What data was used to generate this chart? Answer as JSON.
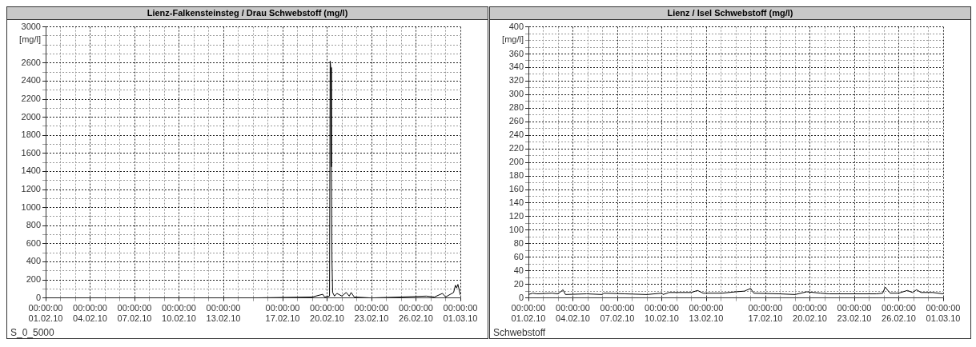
{
  "chart_data": [
    {
      "type": "line",
      "title": "Lienz-Falkensteinsteg / Drau Schwebstoff (mg/l)",
      "ylabel": "[mg/l]",
      "color": "#000000",
      "grid": true,
      "x": [
        "--02-01T00:00",
        "--02-05T00:00",
        "--02-10T00:00",
        "--02-15T00:00",
        "--02-19T00:00",
        "--02-19T17:00",
        "--02-19T20:00",
        "--02-20T04:00",
        "--02-20T05:00",
        "--02-20T06:00",
        "--02-20T07:00",
        "--02-20T08:00",
        "--02-20T09:00",
        "--02-20T12:00",
        "--02-20T16:00",
        "--02-21T00:00",
        "--02-21T07:00",
        "--02-21T12:00",
        "--02-21T15:00",
        "--02-21T20:00",
        "--02-23T00:00",
        "--02-25T00:00",
        "--02-26T17:00",
        "--02-27T06:00",
        "--02-27T19:00",
        "--02-28T00:00",
        "--02-28T13:00",
        "--02-28T16:00",
        "--02-28T18:00",
        "--02-28T20:00",
        "--03-01T00:00"
      ],
      "values": [
        0,
        0,
        0,
        0,
        10,
        40,
        10,
        20,
        2620,
        2550,
        1450,
        400,
        60,
        20,
        50,
        20,
        60,
        20,
        60,
        10,
        0,
        10,
        20,
        10,
        50,
        10,
        60,
        140,
        110,
        150,
        30
      ],
      "xlim": [
        "--02-01",
        "--03-01"
      ],
      "xticks": [
        {
          "value": "--02-01",
          "label": "00:00:00\n01.02.10"
        },
        {
          "value": "--02-02",
          "label": null
        },
        {
          "value": "--02-03",
          "label": null
        },
        {
          "value": "--02-04",
          "label": "00:00:00\n04.02.10"
        },
        {
          "value": "--02-05",
          "label": null
        },
        {
          "value": "--02-06",
          "label": null
        },
        {
          "value": "--02-07",
          "label": "00:00:00\n07.02.10"
        },
        {
          "value": "--02-08",
          "label": null
        },
        {
          "value": "--02-09",
          "label": null
        },
        {
          "value": "--02-10",
          "label": "00:00:00\n10.02.10"
        },
        {
          "value": "--02-11",
          "label": null
        },
        {
          "value": "--02-12",
          "label": null
        },
        {
          "value": "--02-13",
          "label": "00:00:00\n13.02.10"
        },
        {
          "value": "--02-14",
          "label": null
        },
        {
          "value": "--02-15",
          "label": null
        },
        {
          "value": "--02-16",
          "label": null
        },
        {
          "value": "--02-17",
          "label": "00:00:00\n17.02.10"
        },
        {
          "value": "--02-18",
          "label": null
        },
        {
          "value": "--02-19",
          "label": null
        },
        {
          "value": "--02-20",
          "label": "00:00:00\n20.02.10"
        },
        {
          "value": "--02-21",
          "label": null
        },
        {
          "value": "--02-22",
          "label": null
        },
        {
          "value": "--02-23",
          "label": "00:00:00\n23.02.10"
        },
        {
          "value": "--02-24",
          "label": null
        },
        {
          "value": "--02-25",
          "label": null
        },
        {
          "value": "--02-26",
          "label": "00:00:00\n26.02.10"
        },
        {
          "value": "--02-27",
          "label": null
        },
        {
          "value": "--02-28",
          "label": null
        },
        {
          "value": "--03-01",
          "label": "00:00:00\n01.03.10"
        }
      ],
      "ylim": [
        0,
        3000
      ],
      "yticks": [
        0,
        {
          "value": 100,
          "label": null
        },
        200,
        {
          "value": 300,
          "label": null
        },
        400,
        {
          "value": 500,
          "label": null
        },
        600,
        {
          "value": 700,
          "label": null
        },
        800,
        {
          "value": 900,
          "label": null
        },
        1000,
        {
          "value": 1100,
          "label": null
        },
        1200,
        {
          "value": 1300,
          "label": null
        },
        1400,
        {
          "value": 1500,
          "label": null
        },
        1600,
        {
          "value": 1700,
          "label": null
        },
        1800,
        {
          "value": 1900,
          "label": null
        },
        2000,
        {
          "value": 2100,
          "label": null
        },
        2200,
        {
          "value": 2300,
          "label": null
        },
        2400,
        {
          "value": 2500,
          "label": null
        },
        2600,
        {
          "value": 2700,
          "label": null
        },
        {
          "value": 2800,
          "label": null
        },
        {
          "value": 2900,
          "label": null
        },
        3000
      ],
      "annotations": [
        "S_0_5000"
      ]
    },
    {
      "type": "line",
      "title": "Lienz / Isel Schwebstoff (mg/l)",
      "ylabel": "[mg/l]",
      "color": "#000000",
      "grid": true,
      "x": [
        "--02-01T00:00",
        "--02-01T07:00",
        "--02-01T14:00",
        "--02-02T14:00",
        "--02-03T00:00",
        "--02-03T08:00",
        "--02-03T12:00",
        "--02-04T22:00",
        "--02-06T00:00",
        "--02-06T02:00",
        "--02-07T12:00",
        "--02-09T00:00",
        "--02-10T00:00",
        "--02-10T02:00",
        "--02-10T12:00",
        "--02-12T00:00",
        "--02-12T10:00",
        "--02-12T19:00",
        "--02-14T02:00",
        "--02-15T00:00",
        "--02-15T14:00",
        "--02-16T00:00",
        "--02-16T05:00",
        "--02-17T22:00",
        "--02-19T00:00",
        "--02-19T19:00",
        "--02-20T17:00",
        "--02-21T07:00",
        "--02-24T12:00",
        "--02-24T22:00",
        "--02-25T02:00",
        "--02-25T10:00",
        "--02-26T00:00",
        "--02-26T14:00",
        "--02-26T22:00",
        "--02-27T05:00",
        "--02-27T12:00",
        "--02-28T07:00",
        "--03-01T00:00"
      ],
      "values": [
        5,
        7,
        6,
        7,
        6,
        12,
        5,
        6,
        5,
        7,
        6,
        5,
        7,
        5,
        8,
        8,
        11,
        7,
        7,
        9,
        10,
        14,
        7,
        6,
        5,
        9,
        7,
        6,
        6,
        7,
        16,
        7,
        7,
        11,
        8,
        12,
        8,
        8,
        6
      ],
      "xlim": [
        "--02-01",
        "--03-01"
      ],
      "xticks": [
        {
          "value": "--02-01",
          "label": "00:00:00\n01.02.10"
        },
        {
          "value": "--02-02",
          "label": null
        },
        {
          "value": "--02-03",
          "label": null
        },
        {
          "value": "--02-04",
          "label": "00:00:00\n04.02.10"
        },
        {
          "value": "--02-05",
          "label": null
        },
        {
          "value": "--02-06",
          "label": null
        },
        {
          "value": "--02-07",
          "label": "00:00:00\n07.02.10"
        },
        {
          "value": "--02-08",
          "label": null
        },
        {
          "value": "--02-09",
          "label": null
        },
        {
          "value": "--02-10",
          "label": "00:00:00\n10.02.10"
        },
        {
          "value": "--02-11",
          "label": null
        },
        {
          "value": "--02-12",
          "label": null
        },
        {
          "value": "--02-13",
          "label": "00:00:00\n13.02.10"
        },
        {
          "value": "--02-14",
          "label": null
        },
        {
          "value": "--02-15",
          "label": null
        },
        {
          "value": "--02-16",
          "label": null
        },
        {
          "value": "--02-17",
          "label": "00:00:00\n17.02.10"
        },
        {
          "value": "--02-18",
          "label": null
        },
        {
          "value": "--02-19",
          "label": null
        },
        {
          "value": "--02-20",
          "label": "00:00:00\n20.02.10"
        },
        {
          "value": "--02-21",
          "label": null
        },
        {
          "value": "--02-22",
          "label": null
        },
        {
          "value": "--02-23",
          "label": "00:00:00\n23.02.10"
        },
        {
          "value": "--02-24",
          "label": null
        },
        {
          "value": "--02-25",
          "label": null
        },
        {
          "value": "--02-26",
          "label": "00:00:00\n26.02.10"
        },
        {
          "value": "--02-27",
          "label": null
        },
        {
          "value": "--02-28",
          "label": null
        },
        {
          "value": "--03-01",
          "label": "00:00:00\n01.03.10"
        }
      ],
      "ylim": [
        0,
        400
      ],
      "yticks": [
        0,
        {
          "value": 10,
          "label": null
        },
        20,
        {
          "value": 30,
          "label": null
        },
        40,
        {
          "value": 50,
          "label": null
        },
        60,
        {
          "value": 70,
          "label": null
        },
        80,
        {
          "value": 90,
          "label": null
        },
        100,
        {
          "value": 110,
          "label": null
        },
        120,
        {
          "value": 130,
          "label": null
        },
        140,
        {
          "value": 150,
          "label": null
        },
        160,
        {
          "value": 170,
          "label": null
        },
        180,
        {
          "value": 190,
          "label": null
        },
        200,
        {
          "value": 210,
          "label": null
        },
        220,
        {
          "value": 230,
          "label": null
        },
        240,
        {
          "value": 250,
          "label": null
        },
        260,
        {
          "value": 270,
          "label": null
        },
        280,
        {
          "value": 290,
          "label": null
        },
        300,
        {
          "value": 310,
          "label": null
        },
        320,
        {
          "value": 330,
          "label": null
        },
        340,
        {
          "value": 350,
          "label": null
        },
        360,
        {
          "value": 370,
          "label": null
        },
        {
          "value": 380,
          "label": null
        },
        {
          "value": 390,
          "label": null
        },
        400
      ],
      "annotations": [
        "Schwebstoff"
      ]
    }
  ]
}
